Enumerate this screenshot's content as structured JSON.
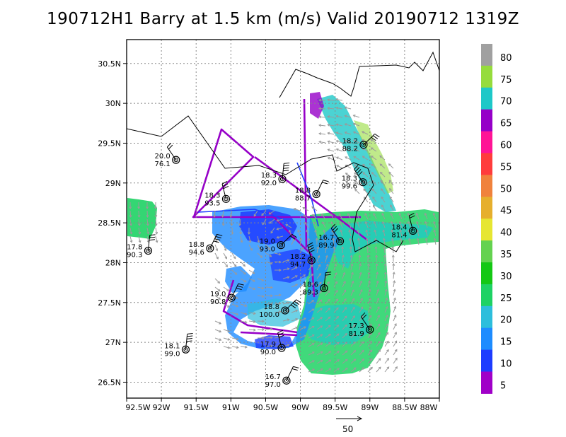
{
  "title": "190712H1 Barry at 1.5 km (m/s) Valid 20190712  1319Z",
  "map": {
    "lat_ticks": [
      "30.5N",
      "30N",
      "29.5N",
      "29N",
      "28.5N",
      "28N",
      "27.5N",
      "27N",
      "26.5N"
    ],
    "lon_ticks": [
      "92.5W",
      "92W",
      "91.5W",
      "91W",
      "90.5W",
      "90W",
      "89.5W",
      "89W",
      "88.5W",
      "88W"
    ],
    "lon_range": [
      -92.5,
      -88.0
    ],
    "lat_range": [
      26.3,
      30.8
    ],
    "grid": true
  },
  "colorbar": {
    "labels": [
      "80",
      "75",
      "70",
      "65",
      "60",
      "55",
      "50",
      "45",
      "40",
      "35",
      "30",
      "25",
      "20",
      "15",
      "10",
      "5"
    ],
    "colors": [
      "#a0a0a0",
      "#96dc3c",
      "#1ec8c8",
      "#9600c8",
      "#ff1496",
      "#ff3c3c",
      "#f0823c",
      "#e6af2d",
      "#e6e632",
      "#64d250",
      "#14c814",
      "#1ed264",
      "#2dbedc",
      "#1e8cff",
      "#1e3cff",
      "#a000c8"
    ]
  },
  "reference_vector": {
    "label": "50"
  },
  "stations": [
    {
      "lon": -91.79,
      "lat": 29.29,
      "t": "20.0",
      "v": "76.1"
    },
    {
      "lon": -91.07,
      "lat": 28.8,
      "t": "18.3",
      "v": "93.5"
    },
    {
      "lon": -90.26,
      "lat": 29.05,
      "t": "18.3",
      "v": "92.0"
    },
    {
      "lon": -89.77,
      "lat": 28.86,
      "t": "18.8",
      "v": "88.7"
    },
    {
      "lon": -89.09,
      "lat": 29.48,
      "t": "18.2",
      "v": "88.2"
    },
    {
      "lon": -89.1,
      "lat": 29.01,
      "t": "18.3",
      "v": "99.6"
    },
    {
      "lon": -88.38,
      "lat": 28.4,
      "t": "18.4",
      "v": "81.4"
    },
    {
      "lon": -92.19,
      "lat": 28.15,
      "t": "17.8",
      "v": "90.3"
    },
    {
      "lon": -91.3,
      "lat": 28.18,
      "t": "18.8",
      "v": "94.6"
    },
    {
      "lon": -90.28,
      "lat": 28.22,
      "t": "19.0",
      "v": "93.0"
    },
    {
      "lon": -89.43,
      "lat": 28.27,
      "t": "16.7",
      "v": "89.9"
    },
    {
      "lon": -89.84,
      "lat": 28.03,
      "t": "18.2",
      "v": "94.7"
    },
    {
      "lon": -89.66,
      "lat": 27.68,
      "t": "18.6",
      "v": "89.3"
    },
    {
      "lon": -90.99,
      "lat": 27.56,
      "t": "19.0",
      "v": "90.8"
    },
    {
      "lon": -90.22,
      "lat": 27.4,
      "t": "18.8",
      "v": "100.0"
    },
    {
      "lon": -89.0,
      "lat": 27.16,
      "t": "17.3",
      "v": "81.9"
    },
    {
      "lon": -90.27,
      "lat": 26.93,
      "t": "17.9",
      "v": "90.0"
    },
    {
      "lon": -91.65,
      "lat": 26.91,
      "t": "18.1",
      "v": "99.0"
    },
    {
      "lon": -90.2,
      "lat": 26.52,
      "t": "16.7",
      "v": "97.0"
    }
  ]
}
